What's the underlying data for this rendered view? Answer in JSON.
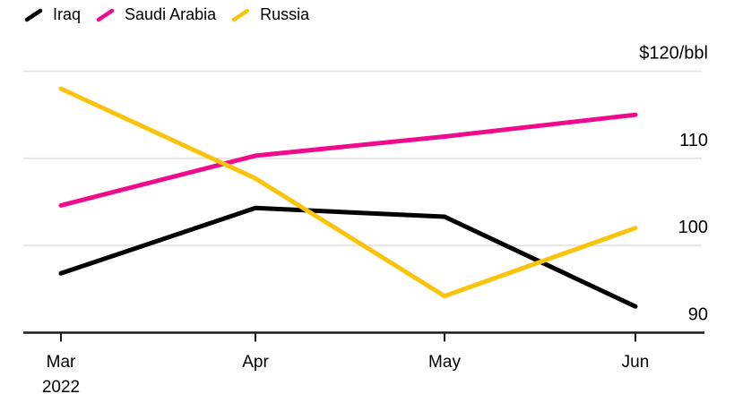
{
  "chart_data": {
    "type": "line",
    "title": "",
    "categories": [
      "Mar 2022",
      "Apr",
      "May",
      "Jun"
    ],
    "x_tick_labels": [
      [
        "Mar",
        "2022"
      ],
      [
        "Apr"
      ],
      [
        "May"
      ],
      [
        "Jun"
      ]
    ],
    "series": [
      {
        "name": "Iraq",
        "color": "#000000",
        "values": [
          96.8,
          104.3,
          103.3,
          93.0
        ]
      },
      {
        "name": "Saudi Arabia",
        "color": "#F00A8C",
        "values": [
          104.6,
          110.3,
          112.5,
          115.0
        ]
      },
      {
        "name": "Russia",
        "color": "#FAC40D",
        "values": [
          118.0,
          107.7,
          94.2,
          102.0
        ]
      }
    ],
    "y_axis": {
      "side": "right",
      "min": 90,
      "max": 120,
      "unit_label": "$120/bbl",
      "ticks": [
        {
          "value": 120,
          "label": "$120/bbl"
        },
        {
          "value": 110,
          "label": "110"
        },
        {
          "value": 100,
          "label": "100"
        },
        {
          "value": 90,
          "label": "90"
        }
      ]
    },
    "grid": "horizontal",
    "legend_position": "top-left",
    "colors": {
      "grid": "#E4E4E4",
      "axis": "#1A1A1A",
      "text": "#000000",
      "background": "#FFFFFF"
    }
  }
}
